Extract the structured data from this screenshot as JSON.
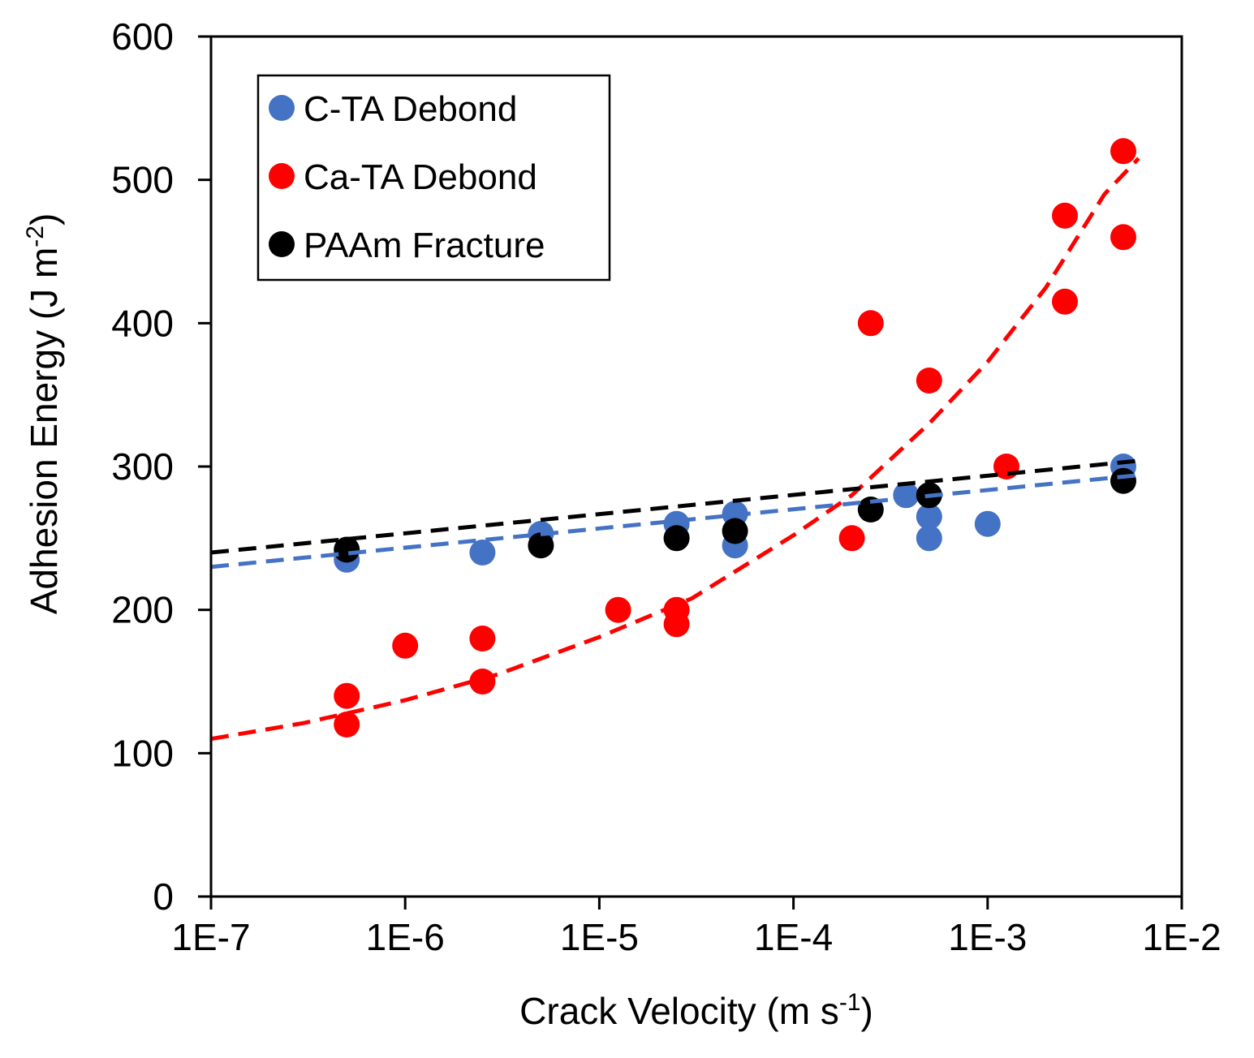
{
  "chart_data": {
    "type": "scatter",
    "title": "",
    "xlabel": "Crack Velocity (m s",
    "xlabel_sup": "-1",
    "xlabel_end": ")",
    "ylabel": "Adhesion Energy (J m",
    "ylabel_sup": "-2",
    "ylabel_end": ")",
    "x_scale": "log",
    "xlim": [
      1e-07,
      0.01
    ],
    "ylim": [
      0,
      600
    ],
    "x_ticks": [
      1e-07,
      1e-06,
      1e-05,
      0.0001,
      0.001,
      0.01
    ],
    "x_tick_labels": [
      "1E-7",
      "1E-6",
      "1E-5",
      "1E-4",
      "1E-3",
      "1E-2"
    ],
    "y_ticks": [
      0,
      100,
      200,
      300,
      400,
      500,
      600
    ],
    "y_tick_labels": [
      "0",
      "100",
      "200",
      "300",
      "400",
      "500",
      "600"
    ],
    "grid": false,
    "legend_position": "top-left",
    "series": [
      {
        "name": "C-TA Debond",
        "color": "#4472C4",
        "x": [
          5e-07,
          2.5e-06,
          5e-06,
          2.5e-05,
          2.5e-05,
          5e-05,
          5e-05,
          0.00038,
          0.0005,
          0.0005,
          0.001,
          0.005
        ],
        "y": [
          235,
          240,
          253,
          260,
          250,
          267,
          245,
          280,
          265,
          250,
          260,
          300
        ],
        "trendline": {
          "x": [
            1e-07,
            0.006
          ],
          "y": [
            230,
            294
          ]
        }
      },
      {
        "name": "Ca-TA Debond",
        "color": "#FF0000",
        "x": [
          5e-07,
          5e-07,
          1e-06,
          2.5e-06,
          2.5e-06,
          1.25e-05,
          2.5e-05,
          2.5e-05,
          0.0002,
          0.00025,
          0.0005,
          0.00125,
          0.0025,
          0.0025,
          0.005,
          0.005
        ],
        "y": [
          140,
          120,
          175,
          180,
          150,
          200,
          200,
          190,
          250,
          400,
          360,
          300,
          475,
          415,
          520,
          460
        ],
        "trendline": {
          "x": [
            1e-07,
            3e-07,
            1e-06,
            3e-06,
            1e-05,
            3e-05,
            0.0001,
            0.0002,
            0.0005,
            0.001,
            0.002,
            0.004,
            0.006
          ],
          "y": [
            110,
            121,
            137,
            155,
            181,
            208,
            252,
            280,
            330,
            373,
            425,
            490,
            515
          ]
        }
      },
      {
        "name": "PAAm Fracture",
        "color": "#000000",
        "x": [
          5e-07,
          5e-06,
          2.5e-05,
          5e-05,
          0.00025,
          0.0005,
          0.005
        ],
        "y": [
          242,
          245,
          250,
          255,
          270,
          280,
          290
        ],
        "trendline": {
          "x": [
            1e-07,
            0.006
          ],
          "y": [
            240,
            304
          ]
        }
      }
    ]
  }
}
